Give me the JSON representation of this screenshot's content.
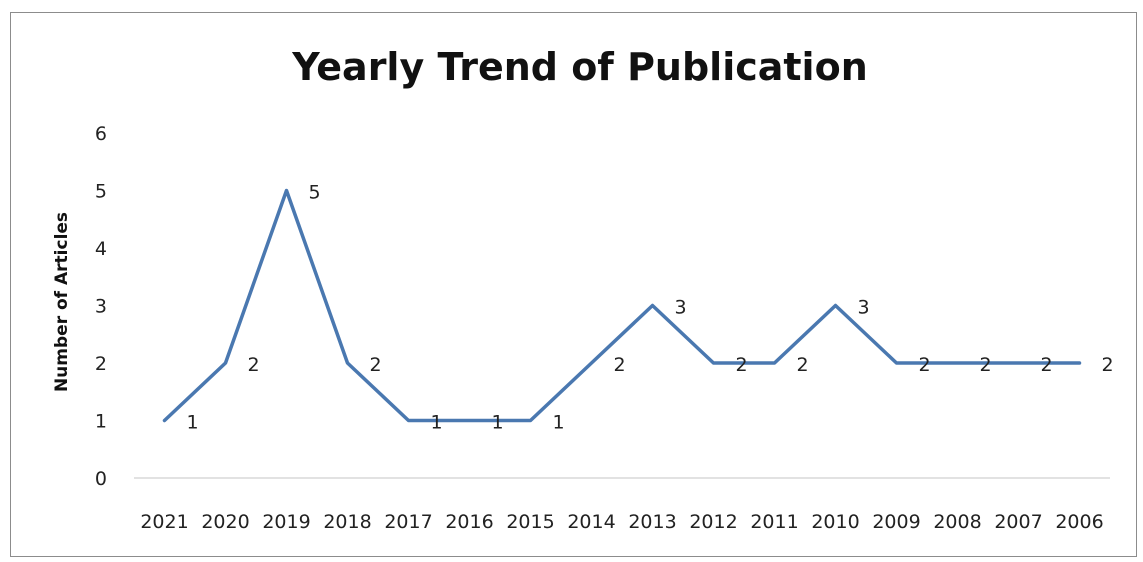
{
  "chart_data": {
    "type": "line",
    "title": "Yearly Trend of Publication",
    "xlabel": "",
    "ylabel": "Number of Articles",
    "categories": [
      "2021",
      "2020",
      "2019",
      "2018",
      "2017",
      "2016",
      "2015",
      "2014",
      "2013",
      "2012",
      "2011",
      "2010",
      "2009",
      "2008",
      "2007",
      "2006"
    ],
    "series": [
      {
        "values": [
          1,
          2,
          5,
          2,
          1,
          1,
          1,
          2,
          3,
          2,
          2,
          3,
          2,
          2,
          2,
          2
        ],
        "color": "#4a78b0"
      }
    ],
    "ylim": [
      0,
      6
    ],
    "yticks": [
      "0",
      "1",
      "2",
      "3",
      "4",
      "5",
      "6"
    ],
    "data_labels": true,
    "grid": false,
    "legend": "none"
  }
}
